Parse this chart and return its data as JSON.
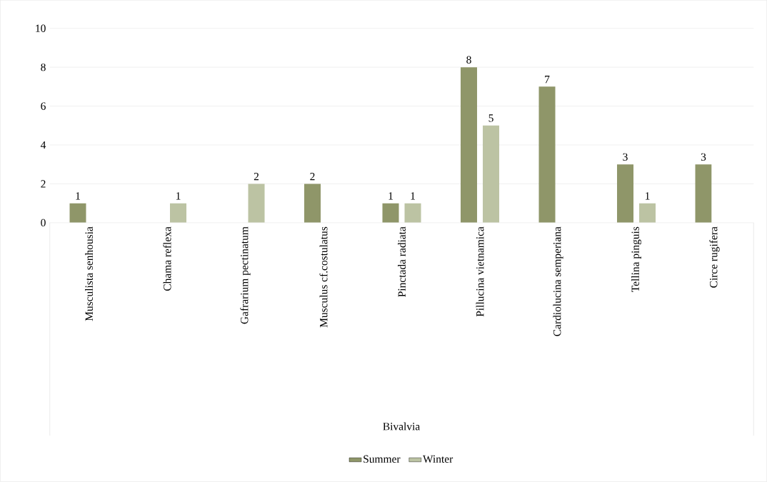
{
  "chart_data": {
    "type": "bar",
    "annotations": [
      "Bivalvia"
    ],
    "categories": [
      "Musculista senhousia",
      "Chama reflexa",
      "Gafrarium pectinatum",
      "Musculus cf.costulatus",
      "Pinctada radiata",
      "Pillucina vietnamica",
      "Cardiolucina semperiana",
      "Tellina pinguis",
      "Circe rugifera"
    ],
    "series": [
      {
        "name": "Summer",
        "color": "#8f9669",
        "values": [
          1,
          null,
          null,
          2,
          1,
          8,
          7,
          3,
          3
        ]
      },
      {
        "name": "Winter",
        "color": "#bcc3a3",
        "values": [
          null,
          1,
          2,
          null,
          1,
          5,
          null,
          1,
          null
        ]
      }
    ],
    "ylim": [
      0,
      10
    ],
    "yticks": [
      0,
      2,
      4,
      6,
      8,
      10
    ],
    "grid": "y",
    "legend": "bottom",
    "data_labels": true
  }
}
